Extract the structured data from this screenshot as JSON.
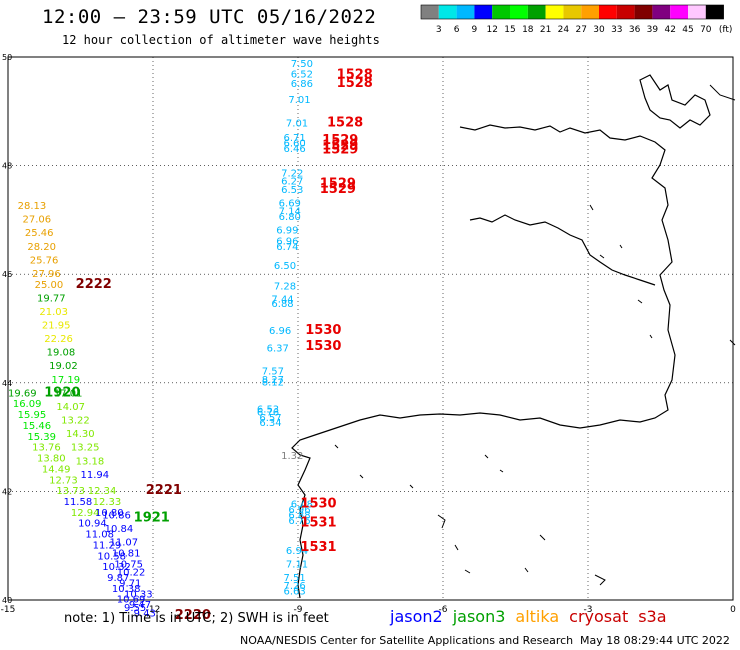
{
  "header": {
    "title": "12:00 — 23:59 UTC 05/16/2022",
    "subtitle": "12 hour collection of altimeter wave heights"
  },
  "colorbar": {
    "ticks": [
      "3",
      "6",
      "9",
      "12",
      "15",
      "18",
      "21",
      "24",
      "27",
      "30",
      "33",
      "36",
      "39",
      "42",
      "45",
      "70"
    ],
    "unit": "(ft)",
    "colors": [
      "#808080",
      "#00e8e8",
      "#00b8ff",
      "#0000ff",
      "#00c800",
      "#00ff00",
      "#00a000",
      "#ffff00",
      "#e8c800",
      "#ffa000",
      "#ff0000",
      "#c80000",
      "#800000",
      "#800080",
      "#ff00ff",
      "#ffc8ff",
      "#000000"
    ]
  },
  "footer": {
    "note": "note: 1) Time is in UTC; 2) SWH is in feet",
    "credit": "NOAA/NESDIS Center for Satellite Applications and Research",
    "timestamp": "May 18 08:29:44 UTC 2022"
  },
  "legend": [
    {
      "name": "jason2",
      "color": "#0000ff"
    },
    {
      "name": "jason3",
      "color": "#00a000"
    },
    {
      "name": "altika",
      "color": "#ffa000"
    },
    {
      "name": "cryosat",
      "color": "#c80000"
    },
    {
      "name": "s3a",
      "color": "#c80000"
    }
  ],
  "chart_data": {
    "type": "scatter",
    "xlim": [
      -15,
      0
    ],
    "ylim": [
      40,
      50
    ],
    "xticks": [
      "-15",
      "-12",
      "-9",
      "-6",
      "-3",
      "0"
    ],
    "yticks": [
      "40",
      "42",
      "44",
      "46",
      "48",
      "50"
    ],
    "grid": true,
    "labels": [
      {
        "lon": -9.15,
        "lat": 49.82,
        "text": "7.50",
        "c": "#00b8ff"
      },
      {
        "lon": -9.15,
        "lat": 49.62,
        "text": "6.52",
        "c": "#00b8ff"
      },
      {
        "lon": -9.15,
        "lat": 49.45,
        "text": "6.86",
        "c": "#00b8ff"
      },
      {
        "lon": -9.2,
        "lat": 49.15,
        "text": "7.01",
        "c": "#00b8ff"
      },
      {
        "lon": -9.25,
        "lat": 48.72,
        "text": "7.01",
        "c": "#00b8ff"
      },
      {
        "lon": -9.3,
        "lat": 48.45,
        "text": "6.71",
        "c": "#00b8ff"
      },
      {
        "lon": -9.3,
        "lat": 48.35,
        "text": "6.60",
        "c": "#00b8ff"
      },
      {
        "lon": -9.3,
        "lat": 48.25,
        "text": "6.46",
        "c": "#00b8ff"
      },
      {
        "lon": -9.35,
        "lat": 47.8,
        "text": "7.22",
        "c": "#00b8ff"
      },
      {
        "lon": -9.35,
        "lat": 47.65,
        "text": "6.27",
        "c": "#00b8ff"
      },
      {
        "lon": -9.35,
        "lat": 47.5,
        "text": "6.53",
        "c": "#00b8ff"
      },
      {
        "lon": -9.4,
        "lat": 47.25,
        "text": "6.69",
        "c": "#00b8ff"
      },
      {
        "lon": -9.4,
        "lat": 47.1,
        "text": "7.14",
        "c": "#00b8ff"
      },
      {
        "lon": -9.4,
        "lat": 47.0,
        "text": "6.80",
        "c": "#00b8ff"
      },
      {
        "lon": -9.45,
        "lat": 46.75,
        "text": "6.99",
        "c": "#00b8ff"
      },
      {
        "lon": -9.45,
        "lat": 46.55,
        "text": "6.96",
        "c": "#00b8ff"
      },
      {
        "lon": -9.45,
        "lat": 46.45,
        "text": "6.74",
        "c": "#00b8ff"
      },
      {
        "lon": -9.5,
        "lat": 46.1,
        "text": "6.50",
        "c": "#00b8ff"
      },
      {
        "lon": -9.5,
        "lat": 45.72,
        "text": "7.28",
        "c": "#00b8ff"
      },
      {
        "lon": -9.55,
        "lat": 45.48,
        "text": "7.44",
        "c": "#00b8ff"
      },
      {
        "lon": -9.55,
        "lat": 45.4,
        "text": "6.88",
        "c": "#00b8ff"
      },
      {
        "lon": -9.6,
        "lat": 44.9,
        "text": "6.96",
        "c": "#00b8ff"
      },
      {
        "lon": -9.65,
        "lat": 44.58,
        "text": "6.37",
        "c": "#00b8ff"
      },
      {
        "lon": -9.75,
        "lat": 44.15,
        "text": "7.57",
        "c": "#00b8ff"
      },
      {
        "lon": -9.75,
        "lat": 44.0,
        "text": "8.27",
        "c": "#00b8ff"
      },
      {
        "lon": -9.75,
        "lat": 43.95,
        "text": "8.12",
        "c": "#00b8ff"
      },
      {
        "lon": -9.85,
        "lat": 43.45,
        "text": "6.53",
        "c": "#00b8ff"
      },
      {
        "lon": -9.85,
        "lat": 43.4,
        "text": "6.76",
        "c": "#00b8ff"
      },
      {
        "lon": -9.8,
        "lat": 43.3,
        "text": "6.57",
        "c": "#00b8ff"
      },
      {
        "lon": -9.8,
        "lat": 43.2,
        "text": "6.34",
        "c": "#00b8ff"
      },
      {
        "lon": -9.35,
        "lat": 42.6,
        "text": "1.32",
        "c": "#808080"
      },
      {
        "lon": -9.15,
        "lat": 41.7,
        "text": "6.48",
        "c": "#00b8ff"
      },
      {
        "lon": -9.2,
        "lat": 41.6,
        "text": "6.96",
        "c": "#00b8ff"
      },
      {
        "lon": -9.2,
        "lat": 41.5,
        "text": "6.88",
        "c": "#00b8ff"
      },
      {
        "lon": -9.2,
        "lat": 41.4,
        "text": "6.76",
        "c": "#00b8ff"
      },
      {
        "lon": -9.25,
        "lat": 40.85,
        "text": "6.94",
        "c": "#00b8ff"
      },
      {
        "lon": -9.25,
        "lat": 40.6,
        "text": "7.11",
        "c": "#00b8ff"
      },
      {
        "lon": -9.3,
        "lat": 40.35,
        "text": "7.51",
        "c": "#00b8ff"
      },
      {
        "lon": -9.3,
        "lat": 40.2,
        "text": "7.26",
        "c": "#00b8ff"
      },
      {
        "lon": -9.3,
        "lat": 40.1,
        "text": "6.63",
        "c": "#00b8ff"
      },
      {
        "lon": -8.2,
        "lat": 49.6,
        "text": "1528",
        "c": "#e80000",
        "big": true
      },
      {
        "lon": -8.2,
        "lat": 49.45,
        "text": "1528",
        "c": "#e80000",
        "big": true
      },
      {
        "lon": -8.4,
        "lat": 48.72,
        "text": "1528",
        "c": "#e80000",
        "big": true
      },
      {
        "lon": -8.5,
        "lat": 48.4,
        "text": "1529",
        "c": "#e80000",
        "big": true
      },
      {
        "lon": -8.5,
        "lat": 48.3,
        "text": "1529",
        "c": "#e80000",
        "big": true
      },
      {
        "lon": -8.5,
        "lat": 48.22,
        "text": "1529",
        "c": "#e80000",
        "big": true
      },
      {
        "lon": -8.55,
        "lat": 47.6,
        "text": "1529",
        "c": "#e80000",
        "big": true
      },
      {
        "lon": -8.55,
        "lat": 47.5,
        "text": "1529",
        "c": "#e80000",
        "big": true
      },
      {
        "lon": -8.85,
        "lat": 44.9,
        "text": "1530",
        "c": "#e80000",
        "big": true
      },
      {
        "lon": -8.85,
        "lat": 44.6,
        "text": "1530",
        "c": "#e80000",
        "big": true
      },
      {
        "lon": -8.95,
        "lat": 41.7,
        "text": "1530",
        "c": "#e80000",
        "big": true
      },
      {
        "lon": -8.95,
        "lat": 41.35,
        "text": "1531",
        "c": "#e80000",
        "big": true
      },
      {
        "lon": -8.95,
        "lat": 40.9,
        "text": "1531",
        "c": "#e80000",
        "big": true
      },
      {
        "lon": -14.8,
        "lat": 47.2,
        "text": "28.13",
        "c": "#e8a000"
      },
      {
        "lon": -14.7,
        "lat": 46.95,
        "text": "27.06",
        "c": "#e8a000"
      },
      {
        "lon": -14.65,
        "lat": 46.7,
        "text": "25.46",
        "c": "#e8a000"
      },
      {
        "lon": -14.6,
        "lat": 46.45,
        "text": "28.20",
        "c": "#e8a000"
      },
      {
        "lon": -14.55,
        "lat": 46.2,
        "text": "25.76",
        "c": "#e8a000"
      },
      {
        "lon": -14.5,
        "lat": 45.95,
        "text": "27.96",
        "c": "#e8a000"
      },
      {
        "lon": -14.45,
        "lat": 45.75,
        "text": "25.00",
        "c": "#e8a000"
      },
      {
        "lon": -13.6,
        "lat": 45.75,
        "text": "2222",
        "c": "#800000",
        "big": true
      },
      {
        "lon": -14.4,
        "lat": 45.5,
        "text": "19.77",
        "c": "#00a000"
      },
      {
        "lon": -14.35,
        "lat": 45.25,
        "text": "21.03",
        "c": "#e8e800"
      },
      {
        "lon": -14.3,
        "lat": 45.0,
        "text": "21.95",
        "c": "#e8e800"
      },
      {
        "lon": -14.25,
        "lat": 44.75,
        "text": "22.26",
        "c": "#e8e800"
      },
      {
        "lon": -14.2,
        "lat": 44.5,
        "text": "19.08",
        "c": "#00a000"
      },
      {
        "lon": -14.15,
        "lat": 44.25,
        "text": "19.02",
        "c": "#00a000"
      },
      {
        "lon": -14.1,
        "lat": 44.0,
        "text": "17.19",
        "c": "#00e800"
      },
      {
        "lon": -14.05,
        "lat": 43.75,
        "text": "17.01",
        "c": "#00a000"
      },
      {
        "lon": -15.0,
        "lat": 43.75,
        "text": "19.69",
        "c": "#00a000"
      },
      {
        "lon": -14.25,
        "lat": 43.75,
        "text": "1920",
        "c": "#00a000",
        "big": true
      },
      {
        "lon": -14.9,
        "lat": 43.55,
        "text": "16.09",
        "c": "#00e800"
      },
      {
        "lon": -14.0,
        "lat": 43.5,
        "text": "14.07",
        "c": "#80e800"
      },
      {
        "lon": -14.8,
        "lat": 43.35,
        "text": "15.95",
        "c": "#00e800"
      },
      {
        "lon": -13.9,
        "lat": 43.25,
        "text": "13.22",
        "c": "#80e800"
      },
      {
        "lon": -14.7,
        "lat": 43.15,
        "text": "15.46",
        "c": "#00e800"
      },
      {
        "lon": -13.8,
        "lat": 43.0,
        "text": "14.30",
        "c": "#80e800"
      },
      {
        "lon": -14.6,
        "lat": 42.95,
        "text": "15.39",
        "c": "#00e800"
      },
      {
        "lon": -14.5,
        "lat": 42.75,
        "text": "13.76",
        "c": "#80e800"
      },
      {
        "lon": -13.7,
        "lat": 42.75,
        "text": "13.25",
        "c": "#80e800"
      },
      {
        "lon": -14.4,
        "lat": 42.55,
        "text": "13.80",
        "c": "#80e800"
      },
      {
        "lon": -13.6,
        "lat": 42.5,
        "text": "13.18",
        "c": "#80e800"
      },
      {
        "lon": -14.3,
        "lat": 42.35,
        "text": "14.49",
        "c": "#80e800"
      },
      {
        "lon": -13.5,
        "lat": 42.25,
        "text": "11.94",
        "c": "#0000ff"
      },
      {
        "lon": -14.15,
        "lat": 42.15,
        "text": "12.73",
        "c": "#80e800"
      },
      {
        "lon": -14.0,
        "lat": 41.95,
        "text": "13.73",
        "c": "#80e800"
      },
      {
        "lon": -13.35,
        "lat": 41.95,
        "text": "12.34",
        "c": "#80e800"
      },
      {
        "lon": -12.15,
        "lat": 41.95,
        "text": "2221",
        "c": "#800000",
        "big": true
      },
      {
        "lon": -13.85,
        "lat": 41.75,
        "text": "11.58",
        "c": "#0000ff"
      },
      {
        "lon": -13.25,
        "lat": 41.75,
        "text": "12.33",
        "c": "#80e800"
      },
      {
        "lon": -13.7,
        "lat": 41.55,
        "text": "12.94",
        "c": "#80e800"
      },
      {
        "lon": -13.2,
        "lat": 41.55,
        "text": "10.80",
        "c": "#0000ff"
      },
      {
        "lon": -13.05,
        "lat": 41.5,
        "text": "10.86",
        "c": "#0000ff"
      },
      {
        "lon": -12.4,
        "lat": 41.45,
        "text": "1921",
        "c": "#00a000",
        "big": true
      },
      {
        "lon": -13.55,
        "lat": 41.35,
        "text": "10.94",
        "c": "#0000ff"
      },
      {
        "lon": -13.0,
        "lat": 41.25,
        "text": "10.84",
        "c": "#0000ff"
      },
      {
        "lon": -13.4,
        "lat": 41.15,
        "text": "11.08",
        "c": "#0000ff"
      },
      {
        "lon": -12.9,
        "lat": 41.0,
        "text": "11.07",
        "c": "#0000ff"
      },
      {
        "lon": -13.25,
        "lat": 40.95,
        "text": "11.29",
        "c": "#0000ff"
      },
      {
        "lon": -12.85,
        "lat": 40.8,
        "text": "10.81",
        "c": "#0000ff"
      },
      {
        "lon": -13.15,
        "lat": 40.75,
        "text": "10.58",
        "c": "#0000ff"
      },
      {
        "lon": -12.8,
        "lat": 40.6,
        "text": "10.75",
        "c": "#0000ff"
      },
      {
        "lon": -13.05,
        "lat": 40.55,
        "text": "10.32",
        "c": "#0000ff"
      },
      {
        "lon": -12.75,
        "lat": 40.45,
        "text": "10.22",
        "c": "#0000ff"
      },
      {
        "lon": -12.95,
        "lat": 40.35,
        "text": "9.87",
        "c": "#0000ff"
      },
      {
        "lon": -12.7,
        "lat": 40.25,
        "text": "9.71",
        "c": "#0000ff"
      },
      {
        "lon": -12.85,
        "lat": 40.15,
        "text": "10.38",
        "c": "#0000ff"
      },
      {
        "lon": -12.6,
        "lat": 40.05,
        "text": "10.33",
        "c": "#0000ff"
      },
      {
        "lon": -12.75,
        "lat": 39.95,
        "text": "10.69",
        "c": "#0000ff"
      },
      {
        "lon": -12.5,
        "lat": 39.85,
        "text": "9.47",
        "c": "#0000ff"
      },
      {
        "lon": -12.6,
        "lat": 39.8,
        "text": "9.55",
        "c": "#0000ff"
      },
      {
        "lon": -12.4,
        "lat": 39.7,
        "text": "9.43",
        "c": "#0000ff"
      },
      {
        "lon": -11.55,
        "lat": 39.65,
        "text": "2220",
        "c": "#800000",
        "big": true
      }
    ]
  }
}
